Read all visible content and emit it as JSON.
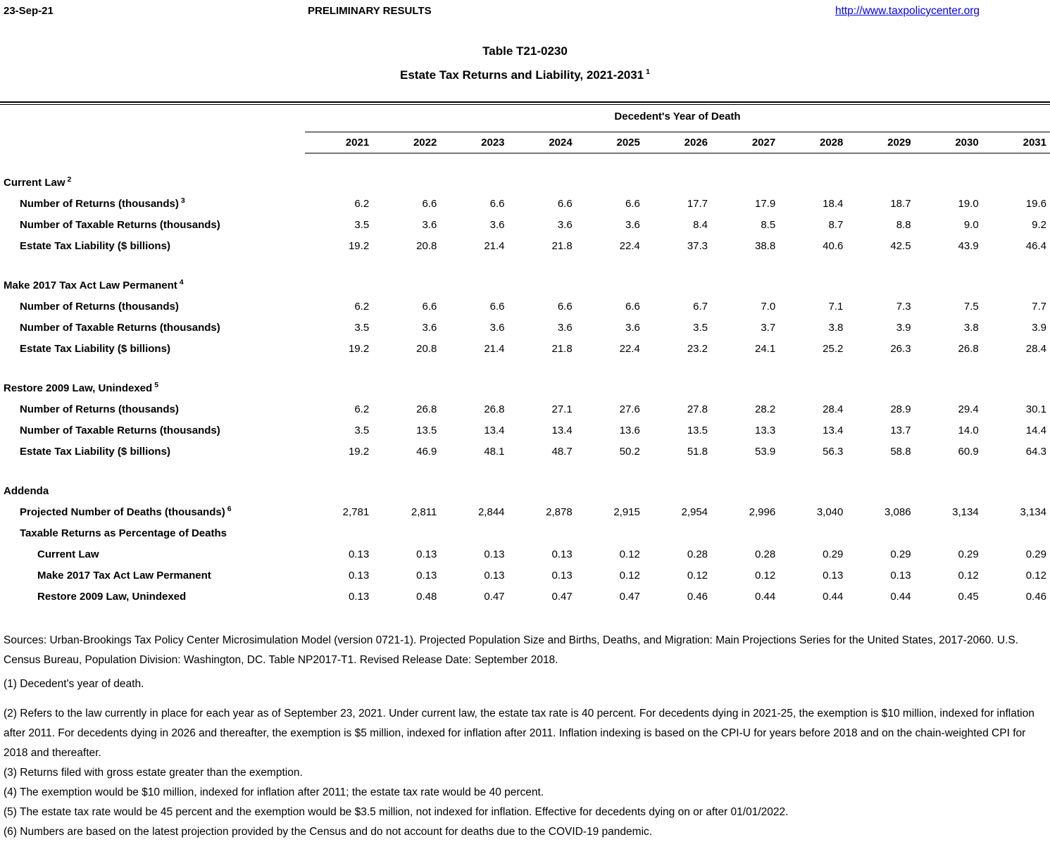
{
  "header": {
    "date": "23-Sep-21",
    "status": "PRELIMINARY RESULTS",
    "url": "http://www.taxpolicycenter.org"
  },
  "title": {
    "line1": "Table T21-0230",
    "line2": "Estate Tax Returns and Liability, 2021-2031",
    "line2_sup": "1"
  },
  "table": {
    "column_group_header": "Decedent's Year of Death",
    "years": [
      "2021",
      "2022",
      "2023",
      "2024",
      "2025",
      "2026",
      "2027",
      "2028",
      "2029",
      "2030",
      "2031"
    ],
    "sections": [
      {
        "label": "Current Law",
        "superscript": "2",
        "rows": [
          {
            "label": "Number of Returns (thousands)",
            "superscript": "3",
            "values": [
              "6.2",
              "6.6",
              "6.6",
              "6.6",
              "6.6",
              "17.7",
              "17.9",
              "18.4",
              "18.7",
              "19.0",
              "19.6"
            ]
          },
          {
            "label": "Number of Taxable Returns (thousands)",
            "superscript": "",
            "values": [
              "3.5",
              "3.6",
              "3.6",
              "3.6",
              "3.6",
              "8.4",
              "8.5",
              "8.7",
              "8.8",
              "9.0",
              "9.2"
            ]
          },
          {
            "label": "Estate Tax Liability ($ billions)",
            "superscript": "",
            "values": [
              "19.2",
              "20.8",
              "21.4",
              "21.8",
              "22.4",
              "37.3",
              "38.8",
              "40.6",
              "42.5",
              "43.9",
              "46.4"
            ]
          }
        ]
      },
      {
        "label": "Make 2017 Tax Act Law Permanent",
        "superscript": "4",
        "rows": [
          {
            "label": "Number of Returns (thousands)",
            "superscript": "",
            "values": [
              "6.2",
              "6.6",
              "6.6",
              "6.6",
              "6.6",
              "6.7",
              "7.0",
              "7.1",
              "7.3",
              "7.5",
              "7.7"
            ]
          },
          {
            "label": "Number of Taxable Returns (thousands)",
            "superscript": "",
            "values": [
              "3.5",
              "3.6",
              "3.6",
              "3.6",
              "3.6",
              "3.5",
              "3.7",
              "3.8",
              "3.9",
              "3.8",
              "3.9"
            ]
          },
          {
            "label": "Estate Tax Liability ($ billions)",
            "superscript": "",
            "values": [
              "19.2",
              "20.8",
              "21.4",
              "21.8",
              "22.4",
              "23.2",
              "24.1",
              "25.2",
              "26.3",
              "26.8",
              "28.4"
            ]
          }
        ]
      },
      {
        "label": "Restore 2009 Law, Unindexed",
        "superscript": "5",
        "rows": [
          {
            "label": "Number of Returns (thousands)",
            "superscript": "",
            "values": [
              "6.2",
              "26.8",
              "26.8",
              "27.1",
              "27.6",
              "27.8",
              "28.2",
              "28.4",
              "28.9",
              "29.4",
              "30.1"
            ]
          },
          {
            "label": "Number of Taxable Returns (thousands)",
            "superscript": "",
            "values": [
              "3.5",
              "13.5",
              "13.4",
              "13.4",
              "13.6",
              "13.5",
              "13.3",
              "13.4",
              "13.7",
              "14.0",
              "14.4"
            ]
          },
          {
            "label": "Estate Tax Liability ($ billions)",
            "superscript": "",
            "values": [
              "19.2",
              "46.9",
              "48.1",
              "48.7",
              "50.2",
              "51.8",
              "53.9",
              "56.3",
              "58.8",
              "60.9",
              "64.3"
            ]
          }
        ]
      }
    ],
    "addenda": {
      "label": "Addenda",
      "rows": [
        {
          "label": "Projected Number of Deaths (thousands)",
          "superscript": "6",
          "indent": 1,
          "values": [
            "2,781",
            "2,811",
            "2,844",
            "2,878",
            "2,915",
            "2,954",
            "2,996",
            "3,040",
            "3,086",
            "3,134",
            "3,134"
          ]
        },
        {
          "label": "Taxable Returns as Percentage of Deaths",
          "superscript": "",
          "indent": 1,
          "values": [
            "",
            "",
            "",
            "",
            "",
            "",
            "",
            "",
            "",
            "",
            ""
          ]
        },
        {
          "label": "Current Law",
          "superscript": "",
          "indent": 2,
          "values": [
            "0.13",
            "0.13",
            "0.13",
            "0.13",
            "0.12",
            "0.28",
            "0.28",
            "0.29",
            "0.29",
            "0.29",
            "0.29"
          ]
        },
        {
          "label": "Make 2017 Tax Act Law Permanent",
          "superscript": "",
          "indent": 2,
          "values": [
            "0.13",
            "0.13",
            "0.13",
            "0.13",
            "0.12",
            "0.12",
            "0.12",
            "0.13",
            "0.13",
            "0.12",
            "0.12"
          ]
        },
        {
          "label": "Restore 2009 Law, Unindexed",
          "superscript": "",
          "indent": 2,
          "values": [
            "0.13",
            "0.48",
            "0.47",
            "0.47",
            "0.47",
            "0.46",
            "0.44",
            "0.44",
            "0.44",
            "0.45",
            "0.46"
          ]
        }
      ]
    }
  },
  "notes": {
    "sources": "Sources: Urban-Brookings Tax Policy Center Microsimulation Model (version 0721-1). Projected Population Size and Births, Deaths, and Migration: Main Projections Series for the United States, 2017-2060. U.S. Census Bureau, Population Division: Washington, DC. Table NP2017-T1. Revised Release Date: September 2018.",
    "footnotes": [
      "(1) Decedent's year of death.",
      "(2) Refers to the law currently in place for each year as of September 23, 2021. Under current law, the estate tax rate is 40 percent. For decedents dying in 2021-25, the exemption is $10 million, indexed for inflation after 2011. For decedents dying in 2026 and thereafter, the exemption is $5 million, indexed for inflation after 2011. Inflation indexing is based on the CPI-U for years before 2018 and on the chain-weighted CPI for 2018 and thereafter.",
      "(3) Returns filed with gross estate greater than the exemption.",
      "(4) The exemption would be $10 million, indexed for inflation after 2011; the estate tax rate would be 40 percent.",
      "(5) The estate tax rate would be 45 percent and the exemption would be $3.5 million, not indexed for inflation. Effective for decedents dying on or after 01/01/2022.",
      "(6) Numbers are based on the latest projection provided by the Census and do not account for deaths due to the COVID-19 pandemic."
    ]
  },
  "colors": {
    "link_blue": "#0000EE",
    "text": "#000000",
    "background": "#FFFFFF"
  }
}
